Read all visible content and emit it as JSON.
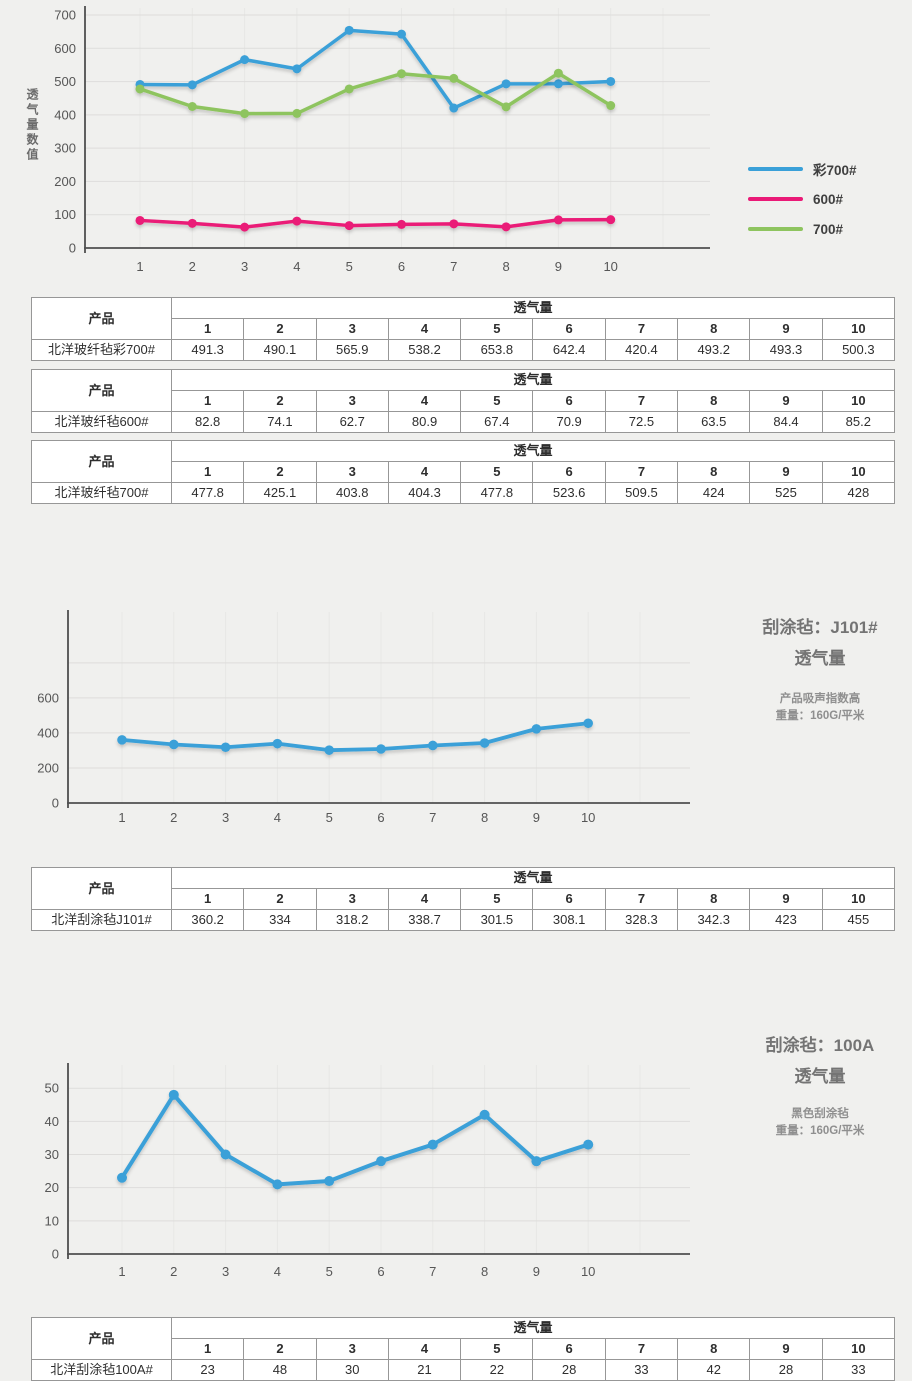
{
  "page": {
    "background": "#f0f0ee"
  },
  "chart_data": [
    {
      "type": "line",
      "y_axis_title": "透气量数值",
      "x": [
        1,
        2,
        3,
        4,
        5,
        6,
        7,
        8,
        9,
        10
      ],
      "x_labels": [
        "1",
        "2",
        "3",
        "4",
        "5",
        "6",
        "7",
        "8",
        "9",
        "10"
      ],
      "y_ticks": [
        0,
        100,
        200,
        300,
        400,
        500,
        600,
        700
      ],
      "y_tick_labels": [
        "0",
        "100",
        "200",
        "300",
        "400",
        "500",
        "600",
        "700"
      ],
      "ylim": [
        0,
        700
      ],
      "y_max": 721,
      "grid": true,
      "legend_position": "right",
      "series": [
        {
          "name": "彩700#",
          "color": "#3aa0d8",
          "values": [
            491.3,
            490.1,
            565.9,
            538.2,
            653.8,
            642.4,
            420.4,
            493.2,
            493.3,
            500.3
          ]
        },
        {
          "name": "600#",
          "color": "#ea1a77",
          "values": [
            82.8,
            74.1,
            62.7,
            80.9,
            67.4,
            70.9,
            72.5,
            63.5,
            84.4,
            85.2
          ]
        },
        {
          "name": "700#",
          "color": "#8ec45f",
          "values": [
            477.8,
            425.1,
            403.8,
            404.3,
            477.8,
            523.6,
            509.5,
            424,
            525,
            428
          ]
        }
      ]
    },
    {
      "type": "line",
      "title": "刮涂毡：J101#",
      "subtitle": "透气量",
      "note": [
        "产品吸声指数高",
        "重量：160G/平米"
      ],
      "x": [
        1,
        2,
        3,
        4,
        5,
        6,
        7,
        8,
        9,
        10
      ],
      "x_labels": [
        "1",
        "2",
        "3",
        "4",
        "5",
        "6",
        "7",
        "8",
        "9",
        "10"
      ],
      "y_ticks": [
        0,
        200,
        400,
        600,
        800
      ],
      "y_tick_labels": [
        "0",
        "200",
        "400",
        "600",
        ""
      ],
      "ylim": [
        0,
        600
      ],
      "y_max": 1090,
      "grid": true,
      "series": [
        {
          "name": "北洋刮涂毡J101#",
          "color": "#3aa0d8",
          "values": [
            360.2,
            334,
            318.2,
            338.7,
            301.5,
            308.1,
            328.3,
            342.3,
            423,
            455
          ]
        }
      ]
    },
    {
      "type": "line",
      "title": "刮涂毡：100A",
      "subtitle": "透气量",
      "note": [
        "黑色刮涂毡",
        "重量：160G/平米"
      ],
      "x": [
        1,
        2,
        3,
        4,
        5,
        6,
        7,
        8,
        9,
        10
      ],
      "x_labels": [
        "1",
        "2",
        "3",
        "4",
        "5",
        "6",
        "7",
        "8",
        "9",
        "10"
      ],
      "y_ticks": [
        0,
        10,
        20,
        30,
        40,
        50
      ],
      "y_tick_labels": [
        "0",
        "10",
        "20",
        "30",
        "40",
        "50"
      ],
      "ylim": [
        0,
        50
      ],
      "y_max": 57,
      "grid": true,
      "series": [
        {
          "name": "北洋刮涂毡100A#",
          "color": "#3aa0d8",
          "values": [
            23,
            48,
            30,
            21,
            22,
            28,
            33,
            42,
            28,
            33
          ]
        }
      ]
    }
  ],
  "tables": [
    {
      "product_header": "产品",
      "group_header": "透气量",
      "columns": [
        "1",
        "2",
        "3",
        "4",
        "5",
        "6",
        "7",
        "8",
        "9",
        "10"
      ],
      "product": "北洋玻纤毡彩700#",
      "values": [
        "491.3",
        "490.1",
        "565.9",
        "538.2",
        "653.8",
        "642.4",
        "420.4",
        "493.2",
        "493.3",
        "500.3"
      ]
    },
    {
      "product_header": "产品",
      "group_header": "透气量",
      "columns": [
        "1",
        "2",
        "3",
        "4",
        "5",
        "6",
        "7",
        "8",
        "9",
        "10"
      ],
      "product": "北洋玻纤毡600#",
      "values": [
        "82.8",
        "74.1",
        "62.7",
        "80.9",
        "67.4",
        "70.9",
        "72.5",
        "63.5",
        "84.4",
        "85.2"
      ]
    },
    {
      "product_header": "产品",
      "group_header": "透气量",
      "columns": [
        "1",
        "2",
        "3",
        "4",
        "5",
        "6",
        "7",
        "8",
        "9",
        "10"
      ],
      "product": "北洋玻纤毡700#",
      "values": [
        "477.8",
        "425.1",
        "403.8",
        "404.3",
        "477.8",
        "523.6",
        "509.5",
        "424",
        "525",
        "428"
      ]
    },
    {
      "product_header": "产品",
      "group_header": "透气量",
      "columns": [
        "1",
        "2",
        "3",
        "4",
        "5",
        "6",
        "7",
        "8",
        "9",
        "10"
      ],
      "product": "北洋刮涂毡J101#",
      "values": [
        "360.2",
        "334",
        "318.2",
        "338.7",
        "301.5",
        "308.1",
        "328.3",
        "342.3",
        "423",
        "455"
      ]
    },
    {
      "product_header": "产品",
      "group_header": "透气量",
      "columns": [
        "1",
        "2",
        "3",
        "4",
        "5",
        "6",
        "7",
        "8",
        "9",
        "10"
      ],
      "product": "北洋刮涂毡100A#",
      "values": [
        "23",
        "48",
        "30",
        "21",
        "22",
        "28",
        "33",
        "42",
        "28",
        "33"
      ]
    }
  ]
}
